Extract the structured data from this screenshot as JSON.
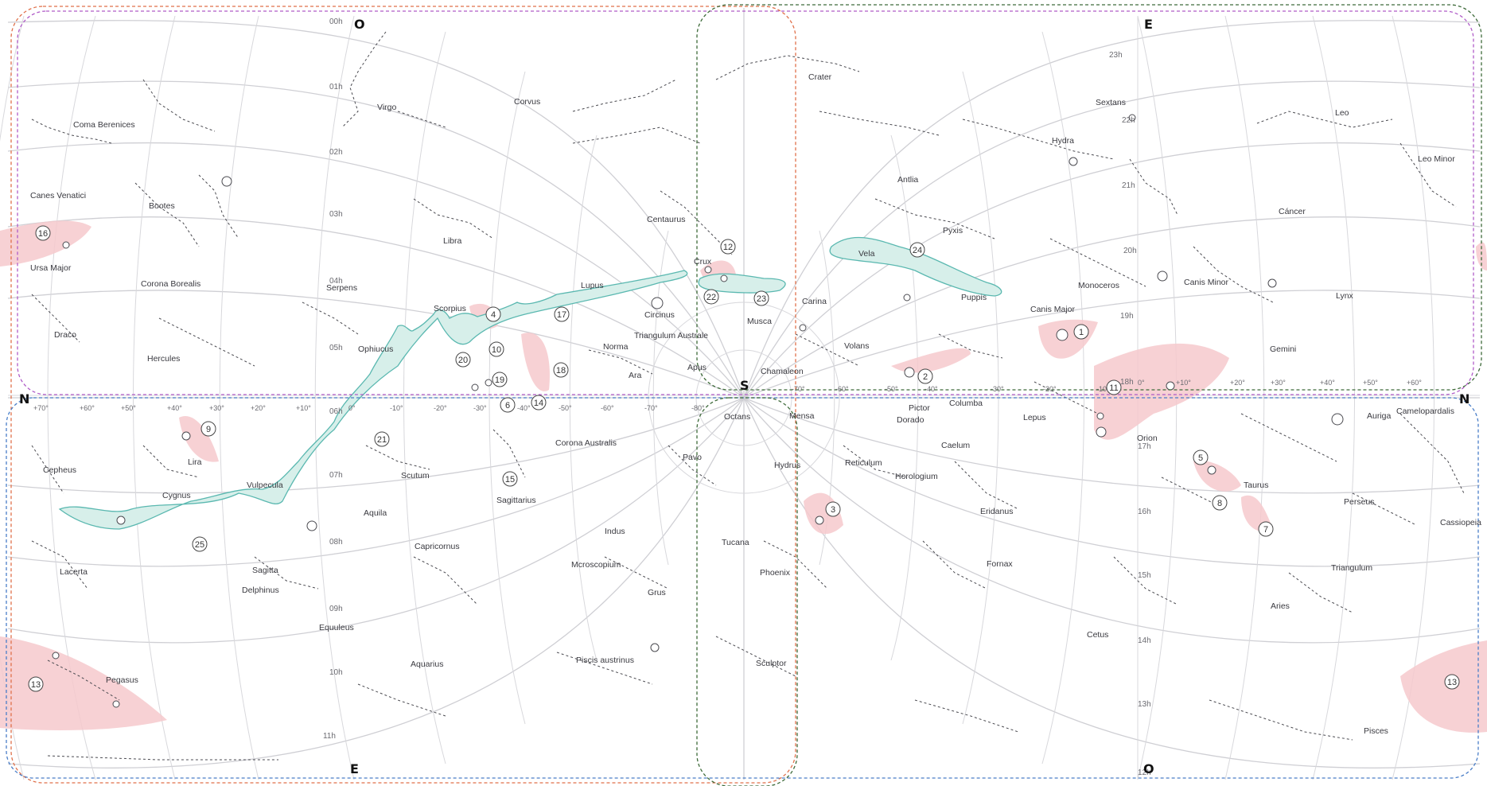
{
  "cardinals": {
    "top_left": "O",
    "top_right": "E",
    "left": "N",
    "right": "N",
    "center": "S",
    "bottom_left": "E",
    "bottom_right": "O"
  },
  "hour_labels": [
    "00h",
    "01h",
    "02h",
    "03h",
    "04h",
    "05h",
    "06h",
    "07h",
    "08h",
    "09h",
    "10h",
    "11h",
    "12h",
    "13h",
    "14h",
    "15h",
    "16h",
    "17h",
    "18h",
    "19h",
    "20h",
    "21h",
    "22h",
    "23h"
  ],
  "declination_labels": [
    "+70°",
    "+60°",
    "+50°",
    "+40°",
    "+30°",
    "+20°",
    "+10°",
    "0°",
    "-10°",
    "-20°",
    "-30°",
    "-40°",
    "-50°",
    "-60°",
    "-70°",
    "-80°",
    "-70°",
    "-60°",
    "-50°",
    "-40°",
    "-30°",
    "-20°",
    "-10°",
    "0°",
    "+10°",
    "+20°",
    "+30°",
    "+40°",
    "+50°",
    "+60°"
  ],
  "constellations": [
    "Coma Berenices",
    "Virgo",
    "Corvus",
    "Crater",
    "Sextans",
    "Leo",
    "Hydra",
    "Leo Minor",
    "Canes Venatici",
    "Bootes",
    "Centaurus",
    "Antlia",
    "Cáncer",
    "Libra",
    "Crux",
    "Pyxis",
    "Ursa Major",
    "Corona Borealis",
    "Serpens",
    "Lupus",
    "Vela",
    "Monoceros",
    "Canis Minor",
    "Lynx",
    "Scorpius",
    "Circinus",
    "Carina",
    "Puppis",
    "Draco",
    "Musca",
    "Canis Major",
    "Ophiucus",
    "Triangulum Australe",
    "Volans",
    "Gemini",
    "Hercules",
    "Norma",
    "Apus",
    "Chamaleon",
    "Ara",
    "Pictor",
    "Columba",
    "Dorado",
    "Lepus",
    "Orion",
    "Auriga",
    "Camelopardalis",
    "Octans",
    "Mensa",
    "Cepheus",
    "Lira",
    "Scutum",
    "Corona Australis",
    "Pavo",
    "Caelum",
    "Reticulum",
    "Hydrus",
    "Horologium",
    "Cygnus",
    "Vulpecula",
    "Sagittarius",
    "Taurus",
    "Perseus",
    "Aquila",
    "Eridanus",
    "Cassiopeia",
    "Sagitta",
    "Indus",
    "Tucana",
    "Lacerta",
    "Capricornus",
    "Mcroscopium",
    "Fornax",
    "Triangulum",
    "Delphinus",
    "Phoenix",
    "Grus",
    "Equuleus",
    "Aries",
    "Pegasus",
    "Aquarius",
    "Piscis austrinus",
    "Cetus",
    "Sculptor",
    "Pisces"
  ],
  "markers": [
    "1",
    "2",
    "3",
    "4",
    "5",
    "6",
    "7",
    "8",
    "9",
    "10",
    "11",
    "12",
    "13",
    "13",
    "14",
    "15",
    "16",
    "17",
    "18",
    "19",
    "20",
    "21",
    "22",
    "23",
    "24",
    "25"
  ],
  "colors": {
    "grid": "#cfcfd4",
    "milky_way_fill": "#d7efea",
    "milky_way_stroke": "#5ab8b0",
    "highlight": "#f6c9cd",
    "frame_orange": "#e0704a",
    "frame_purple": "#b05cc8",
    "frame_green": "#3e6b3a",
    "frame_blue": "#4a7ec8"
  }
}
